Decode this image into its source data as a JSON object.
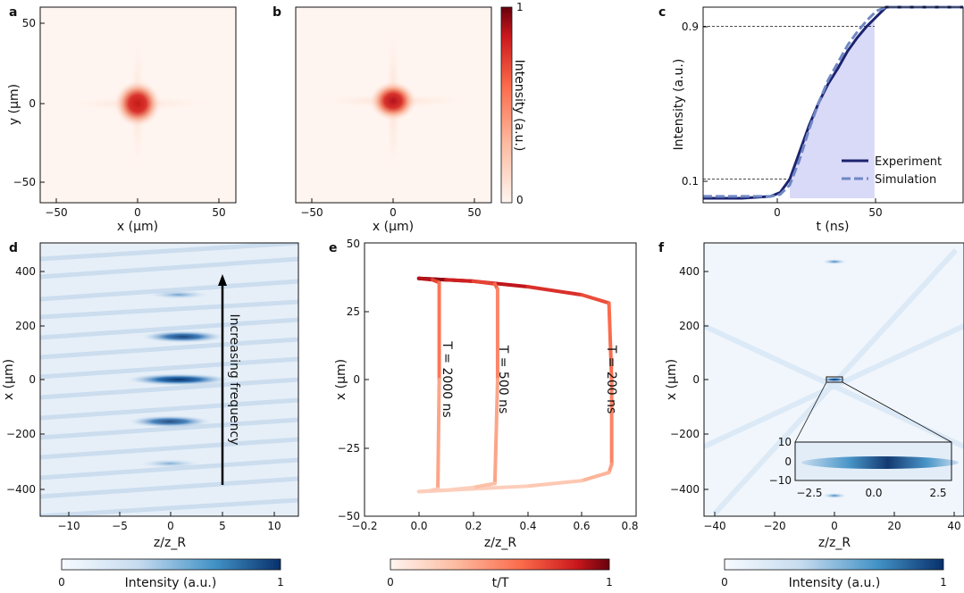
{
  "panels": {
    "a": {
      "label": "a",
      "xlabel": "x (μm)",
      "ylabel": "y (μm)",
      "xticks": [
        "−50",
        "0",
        "50"
      ],
      "yticks": [
        "50",
        "0",
        "−50"
      ]
    },
    "b": {
      "label": "b",
      "xlabel": "x (μm)",
      "xticks": [
        "−50",
        "0",
        "50"
      ],
      "colorbar": {
        "label": "Intensity (a.u.)",
        "max": "1",
        "min": "0"
      }
    },
    "c": {
      "label": "c",
      "xlabel": "t (ns)",
      "ylabel": "Intensity (a.u.)",
      "xticks": [
        "0",
        "50"
      ],
      "yticks": [
        "0.9",
        "0.1"
      ],
      "legend": [
        "Experiment",
        "Simulation"
      ]
    },
    "d": {
      "label": "d",
      "xlabel": "z/z_R",
      "ylabel": "x (μm)",
      "xticks": [
        "−10",
        "−5",
        "0",
        "5",
        "10"
      ],
      "yticks": [
        "400",
        "200",
        "0",
        "−200",
        "−400"
      ],
      "annotation": "Increasing frequency",
      "colorbar": {
        "label": "Intensity (a.u.)",
        "min": "0",
        "max": "1"
      }
    },
    "e": {
      "label": "e",
      "xlabel": "z/z_R",
      "ylabel": "x (μm)",
      "xticks": [
        "−0.2",
        "0.0",
        "0.2",
        "0.4",
        "0.6",
        "0.8"
      ],
      "yticks": [
        "50",
        "25",
        "0",
        "−25",
        "−50"
      ],
      "curve_labels": [
        "T = 2000 ns",
        "T = 500 ns",
        "T = 200 ns"
      ],
      "colorbar": {
        "label": "t/T",
        "min": "0",
        "max": "1"
      }
    },
    "f": {
      "label": "f",
      "xlabel": "z/z_R",
      "ylabel": "x (μm)",
      "xticks": [
        "−40",
        "−20",
        "0",
        "20",
        "40"
      ],
      "yticks": [
        "400",
        "200",
        "0",
        "−200",
        "−400"
      ],
      "inset_xticks": [
        "−2.5",
        "0.0",
        "2.5"
      ],
      "inset_yticks": [
        "10",
        "0",
        "−10"
      ],
      "colorbar": {
        "label": "Intensity (a.u.)",
        "min": "0",
        "max": "1"
      }
    }
  },
  "chart_data": [
    {
      "type": "heatmap",
      "panel": "a",
      "title": "",
      "xlabel": "x (μm)",
      "ylabel": "y (μm)",
      "xlim": [
        -60,
        60
      ],
      "ylim": [
        -60,
        60
      ],
      "peak_at": [
        0,
        0
      ],
      "peak_width_um": 12,
      "colormap": "Reds"
    },
    {
      "type": "heatmap",
      "panel": "b",
      "title": "",
      "xlabel": "x (μm)",
      "ylabel": "",
      "xlim": [
        -60,
        60
      ],
      "ylim": [
        -60,
        60
      ],
      "peak_at": [
        0,
        0
      ],
      "peak_width_um": 11,
      "colormap": "Reds",
      "colorbar_range": [
        0,
        1
      ]
    },
    {
      "type": "line",
      "panel": "c",
      "xlabel": "t (ns)",
      "ylabel": "Intensity (a.u.)",
      "xlim": [
        -40,
        95
      ],
      "ylim": [
        0,
        1
      ],
      "threshold_levels": [
        0.1,
        0.9
      ],
      "shaded_interval_ns": [
        5,
        49
      ],
      "series": [
        {
          "name": "Experiment",
          "color": "#1c2470",
          "x": [
            -40,
            -20,
            -5,
            0,
            5,
            10,
            15,
            20,
            25,
            30,
            35,
            40,
            45,
            50,
            55,
            60,
            70,
            80,
            95
          ],
          "y": [
            0.0,
            0.0,
            0.01,
            0.03,
            0.1,
            0.24,
            0.38,
            0.5,
            0.6,
            0.68,
            0.77,
            0.84,
            0.9,
            0.95,
            1.0,
            1.0,
            1.0,
            1.0,
            1.0
          ]
        },
        {
          "name": "Simulation",
          "color": "#6f88c4",
          "x": [
            -40,
            -20,
            -5,
            0,
            5,
            10,
            15,
            20,
            25,
            30,
            35,
            40,
            45,
            50,
            55,
            60,
            70,
            80,
            95
          ],
          "y": [
            0.01,
            0.01,
            0.01,
            0.02,
            0.07,
            0.2,
            0.36,
            0.5,
            0.62,
            0.71,
            0.8,
            0.87,
            0.93,
            0.98,
            1.0,
            1.0,
            1.0,
            1.0,
            1.0
          ]
        }
      ]
    },
    {
      "type": "heatmap",
      "panel": "d",
      "xlabel": "z/z_R",
      "ylabel": "x (μm)",
      "xlim": [
        -12.5,
        12.5
      ],
      "ylim": [
        -500,
        500
      ],
      "bright_spots": [
        {
          "z": 0,
          "x": 0,
          "intensity": 1.0
        },
        {
          "z": 0,
          "x": 160,
          "intensity": 0.85
        },
        {
          "z": 0,
          "x": -160,
          "intensity": 0.8
        },
        {
          "z": 0,
          "x": 310,
          "intensity": 0.35
        },
        {
          "z": 0,
          "x": -310,
          "intensity": 0.35
        }
      ],
      "arrow": {
        "x": 5,
        "from_y": -380,
        "to_y": 380
      },
      "colormap": "Blues"
    },
    {
      "type": "line",
      "panel": "e",
      "xlabel": "z/z_R",
      "ylabel": "x (μm)",
      "xlim": [
        -0.2,
        0.8
      ],
      "ylim": [
        -50,
        50
      ],
      "color_by": "t/T",
      "colormap": "Reds",
      "series": [
        {
          "name": "T = 200 ns",
          "x": [
            0.0,
            0.2,
            0.4,
            0.6,
            0.7,
            0.71,
            0.71,
            0.7,
            0.6,
            0.4,
            0.2,
            0.0
          ],
          "y": [
            37,
            36,
            34,
            31,
            28,
            0,
            -31,
            -34,
            -37,
            -39,
            -40,
            -41
          ]
        },
        {
          "name": "T = 500 ns",
          "x": [
            0.0,
            0.1,
            0.2,
            0.28,
            0.29,
            0.29,
            0.28,
            0.2,
            0.1,
            0.0
          ],
          "y": [
            37,
            36.5,
            36,
            35,
            33,
            0,
            -38,
            -39.5,
            -40.5,
            -41
          ]
        },
        {
          "name": "T = 2000 ns",
          "x": [
            0.0,
            0.05,
            0.075,
            0.075,
            0.07,
            0.04,
            0.0
          ],
          "y": [
            37,
            36.5,
            35.5,
            0,
            -40,
            -40.7,
            -41
          ]
        }
      ]
    },
    {
      "type": "heatmap",
      "panel": "f",
      "xlabel": "z/z_R",
      "ylabel": "x (μm)",
      "xlim": [
        -45,
        42
      ],
      "ylim": [
        -500,
        500
      ],
      "bright_spots": [
        {
          "z": 0,
          "x": 0
        },
        {
          "z": 0,
          "x": 430
        },
        {
          "z": 0,
          "x": -430
        }
      ],
      "inset": {
        "xlim": [
          -3,
          3
        ],
        "ylim": [
          -10,
          10
        ],
        "peak_at": [
          0,
          0
        ]
      },
      "colormap": "Blues"
    }
  ]
}
